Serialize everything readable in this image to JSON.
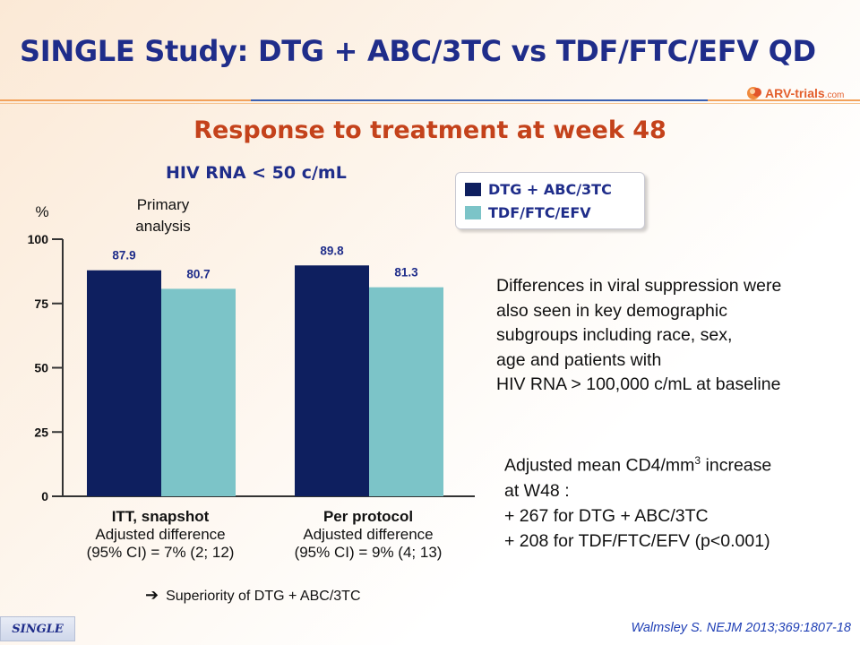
{
  "header": {
    "title": "SINGLE Study: DTG + ABC/3TC vs TDF/FTC/EFV QD",
    "logo_text": "ARV-trials",
    "logo_suffix": ".com"
  },
  "subtitle": "Response to treatment at week 48",
  "chart_data": {
    "type": "bar",
    "title": "HIV RNA < 50 c/mL",
    "ylabel": "%",
    "annotation": "Primary analysis",
    "ylim": [
      0,
      100
    ],
    "yticks": [
      0,
      25,
      50,
      75,
      100
    ],
    "categories": [
      "ITT, snapshot",
      "Per protocol"
    ],
    "series": [
      {
        "name": "DTG + ABC/3TC",
        "color": "#0e1f5f",
        "values": [
          87.9,
          89.8
        ],
        "labels": [
          "87.9",
          "89.8"
        ]
      },
      {
        "name": "TDF/FTC/EFV",
        "color": "#7cc4c8",
        "values": [
          80.7,
          81.3
        ],
        "labels": [
          "80.7",
          "81.3"
        ]
      }
    ],
    "legend_position": "top-right",
    "grid": false
  },
  "groups": [
    {
      "name": "ITT, snapshot",
      "line1": "Adjusted difference",
      "line2": "(95% CI) = 7% (2; 12)"
    },
    {
      "name": "Per protocol",
      "line1": "Adjusted difference",
      "line2": "(95% CI) = 9% (4; 13)"
    }
  ],
  "conclusion": {
    "arrow": "➔",
    "text": "Superiority of DTG + ABC/3TC"
  },
  "notes": {
    "subgroups": [
      "Differences in viral suppression were",
      "also seen in key demographic",
      "subgroups including race, sex,",
      "age and patients with",
      "HIV RNA > 100,000 c/mL at baseline"
    ],
    "cd4_line1_pre": "Adjusted mean CD4/mm",
    "cd4_line1_sup": "3",
    "cd4_line1_post": " increase",
    "cd4_line2": "at W48 :",
    "cd4_line3": "+ 267 for DTG + ABC/3TC",
    "cd4_line4": "+ 208 for TDF/FTC/EFV (p<0.001)"
  },
  "footer": {
    "tag": "SINGLE",
    "citation": "Walmsley S. NEJM 2013;369:1807-18"
  },
  "colors": {
    "title": "#1f2d8a",
    "subtitle": "#c4421b",
    "dark_navy": "#0e1f5f",
    "teal": "#7cc4c8"
  }
}
